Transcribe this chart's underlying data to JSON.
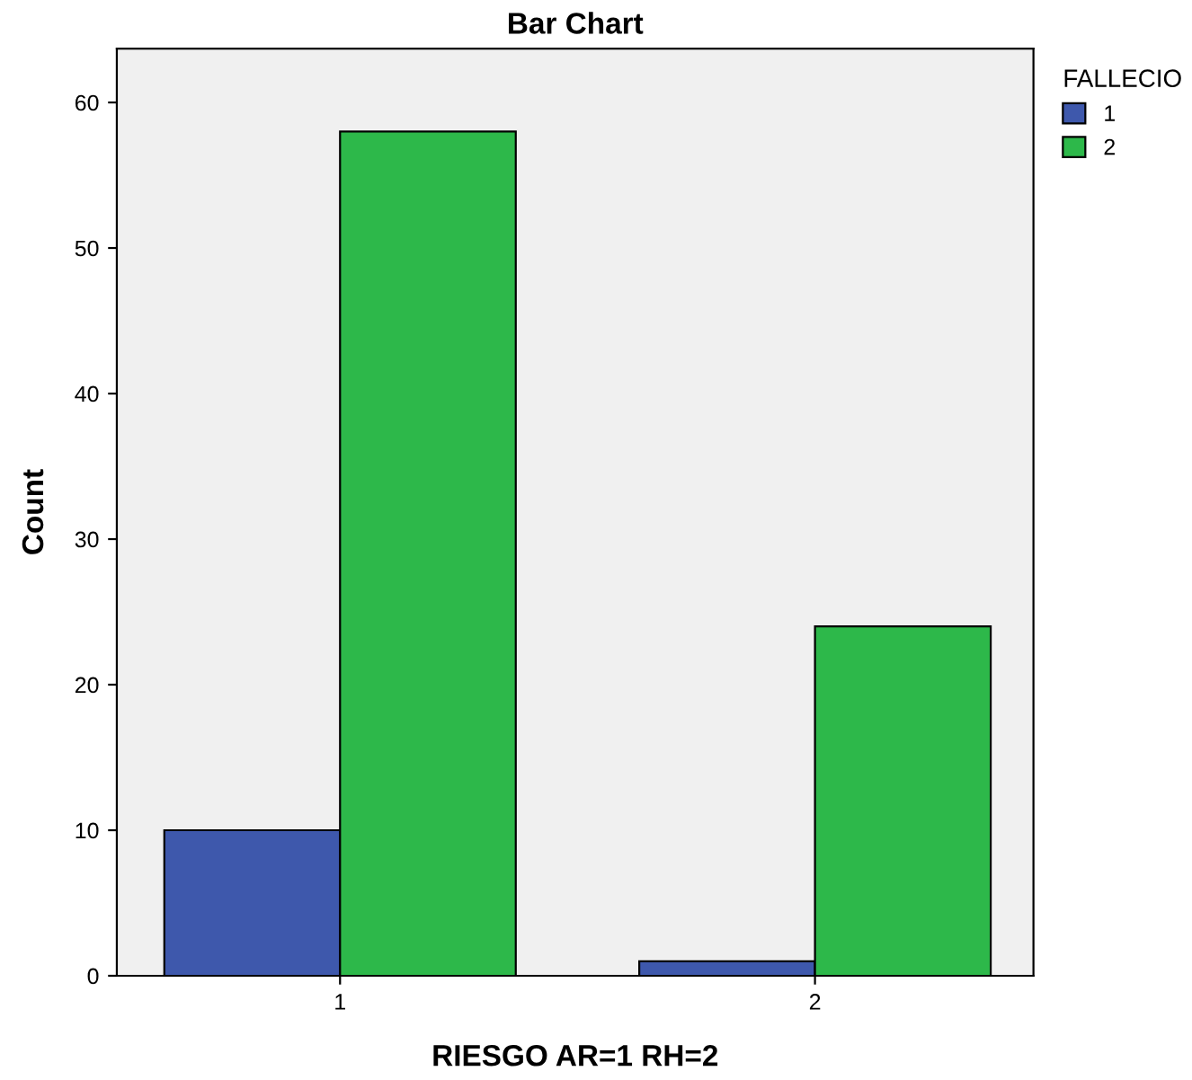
{
  "chart_data": {
    "type": "bar",
    "title": "Bar Chart",
    "xlabel": "RIESGO AR=1 RH=2",
    "ylabel": "Count",
    "legend_title": "FALLECIO",
    "categories": [
      "1",
      "2"
    ],
    "series": [
      {
        "name": "1",
        "color": "#3e58ac",
        "values": [
          10,
          1
        ]
      },
      {
        "name": "2",
        "color": "#2db84a",
        "values": [
          58,
          24
        ]
      }
    ],
    "ylim": [
      0,
      63.7
    ],
    "yticks": [
      0,
      10,
      20,
      30,
      40,
      50,
      60
    ],
    "grid": false,
    "legend": "top right"
  }
}
